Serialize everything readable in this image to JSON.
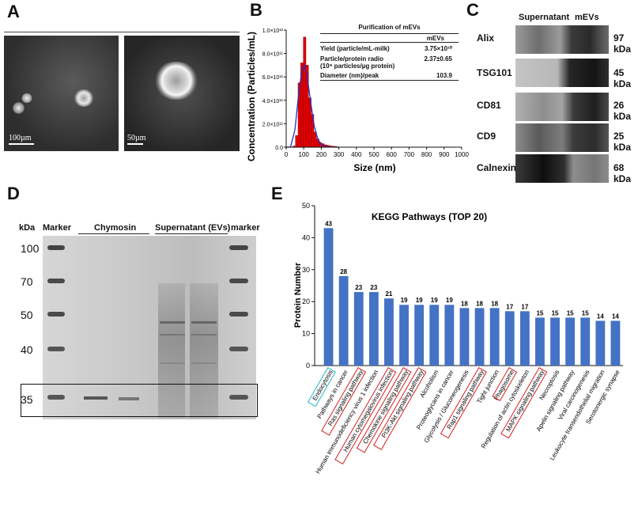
{
  "panel_a": {
    "letter": "A",
    "scale_left": "100µm",
    "scale_right": "50µm"
  },
  "panel_b": {
    "letter": "B",
    "table": {
      "title": "Purification of mEVs",
      "col_header": "mEVs",
      "rows": [
        {
          "label": "Yield (particle/mL-milk)",
          "value": "3.75×10¹⁰"
        },
        {
          "label": "Particle/protein radio",
          "label2": "(10⁹ particles/µg protein)",
          "value": "2.37±0.65"
        },
        {
          "label": "Diameter (nm)/peak",
          "value": "103.9"
        }
      ]
    }
  },
  "panel_c": {
    "letter": "C",
    "headers": [
      "Supernatant",
      "mEVs"
    ],
    "blots": [
      {
        "name": "Alix",
        "kda": "97 kDa"
      },
      {
        "name": "TSG101",
        "kda": "45 kDa"
      },
      {
        "name": "CD81",
        "kda": "26 kDa"
      },
      {
        "name": "CD9",
        "kda": "25 kDa"
      },
      {
        "name": "Calnexin",
        "kda": "68 kDa"
      }
    ]
  },
  "panel_d": {
    "letter": "D",
    "headers": {
      "kda": "kDa",
      "marker_left": "Marker",
      "chymosin": "Chymosin",
      "supernatant": "Supernatant (EVs)",
      "marker_right": "marker"
    },
    "kda_labels": [
      "100",
      "70",
      "50",
      "40",
      "35"
    ]
  },
  "panel_e": {
    "letter": "E"
  },
  "chart_data": [
    {
      "type": "bar",
      "title": "",
      "xlabel": "Size (nm)",
      "ylabel": "Concentration (Particles/mL)",
      "xlim": [
        0,
        1000
      ],
      "ylim": [
        0,
        1000000000000.0
      ],
      "x_ticks": [
        "0",
        "100",
        "200",
        "300",
        "400",
        "500",
        "600",
        "700",
        "800",
        "900",
        "1000"
      ],
      "y_ticks": [
        "0.0",
        "2.0×10¹¹",
        "4.0×10¹¹",
        "6.0×10¹¹",
        "8.0×10¹¹",
        "1.0×10¹²"
      ],
      "bin_centers": [
        45,
        60,
        75,
        90,
        105,
        120,
        135,
        150,
        165,
        180,
        195,
        210,
        225,
        240,
        255,
        270,
        285
      ],
      "values": [
        10000000000.0,
        100000000000.0,
        550000000000.0,
        720000000000.0,
        940000000000.0,
        700000000000.0,
        420000000000.0,
        280000000000.0,
        130000000000.0,
        70000000000.0,
        40000000000.0,
        30000000000.0,
        20000000000.0,
        15000000000.0,
        10000000000.0,
        8000000000.0,
        5000000000.0
      ],
      "fit_curve": {
        "x": [
          0,
          25,
          50,
          70,
          90,
          105,
          120,
          140,
          160,
          180,
          200,
          230,
          260,
          300
        ],
        "y": [
          0,
          2000000000.0,
          150000000000.0,
          440000000000.0,
          670000000000.0,
          700000000000.0,
          600000000000.0,
          380000000000.0,
          180000000000.0,
          70000000000.0,
          20000000000.0,
          3000000000.0,
          1000000000.0,
          0
        ]
      },
      "bar_color": "#e00000",
      "curve_color": "#2233cc"
    },
    {
      "type": "bar",
      "title": "KEGG Pathways (TOP 20)",
      "xlabel": "",
      "ylabel": "Protein Number",
      "ylim": [
        0,
        50
      ],
      "y_ticks": [
        "0",
        "10",
        "20",
        "30",
        "40",
        "50"
      ],
      "categories": [
        "Endocytosis",
        "Pathways in cancer",
        "Ras signaling pathway",
        "Human immunodeficiency virus 1 infection",
        "Human cytomegalovirus infection",
        "Chemokine signaling pathway",
        "PI3K-Akt signaling pathway",
        "Alcoholism",
        "Proteoglycans in cancer",
        "Glycolysis / Gluconeogenesis",
        "Rap1 signaling pathway",
        "Tight junction",
        "Phagosome",
        "Regulation of actin cytoskeleton",
        "MAPK signaling pathway",
        "Necroptosis",
        "Apelin signaling pathway",
        "Viral carcinogenesis",
        "Leukocyte transendothelial migration",
        "Serotonergic synapse"
      ],
      "values": [
        43,
        28,
        23,
        23,
        21,
        19,
        19,
        19,
        19,
        18,
        18,
        18,
        17,
        17,
        15,
        15,
        15,
        15,
        14,
        14
      ],
      "highlight_cyan": [
        "Endocytosis"
      ],
      "highlight_red": [
        "Ras signaling pathway",
        "Human cytomegalovirus infection",
        "Chemokine signaling pathway",
        "PI3K-Akt signaling pathway",
        "Rap1 signaling pathway",
        "Phagosome",
        "MAPK signaling pathway"
      ],
      "bar_color": "#4472c4"
    }
  ]
}
